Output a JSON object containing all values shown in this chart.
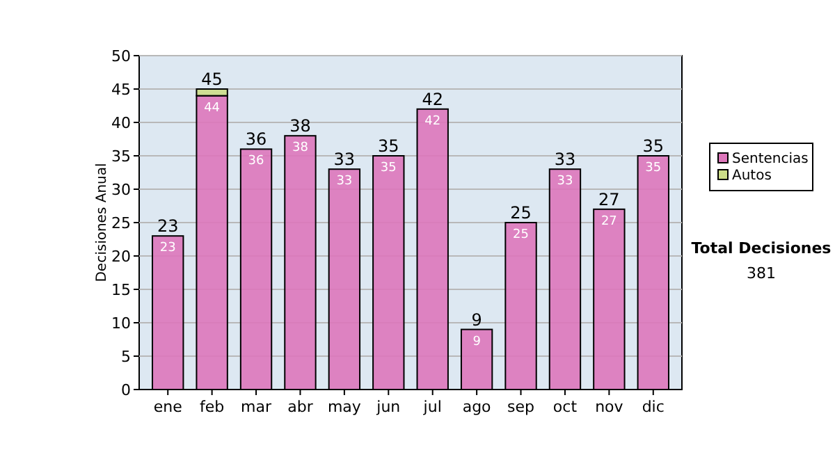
{
  "chart_data": {
    "type": "bar",
    "stacked": true,
    "ylabel": "Decisiones Anual",
    "categories": [
      "ene",
      "feb",
      "mar",
      "abr",
      "may",
      "jun",
      "jul",
      "ago",
      "sep",
      "oct",
      "nov",
      "dic"
    ],
    "series": [
      {
        "name": "Sentencias",
        "color": "#dd77bb",
        "values": [
          23,
          44,
          36,
          38,
          33,
          35,
          42,
          9,
          25,
          33,
          27,
          35
        ],
        "value_labels": [
          "23",
          "44",
          "36",
          "38",
          "33",
          "35",
          "42",
          "9",
          "25",
          "33",
          "27",
          "35"
        ]
      },
      {
        "name": "Autos",
        "color": "#ccdd88",
        "values": [
          0,
          1,
          0,
          0,
          0,
          0,
          0,
          0,
          0,
          0,
          0,
          0
        ]
      }
    ],
    "totals": [
      "23",
      "45",
      "36",
      "38",
      "33",
      "35",
      "42",
      "9",
      "25",
      "33",
      "27",
      "35"
    ],
    "ylim": [
      0,
      50
    ],
    "yticks": [
      0,
      5,
      10,
      15,
      20,
      25,
      30,
      35,
      40,
      45,
      50
    ],
    "grid": "y",
    "legend": "right",
    "annotations": [
      "Total Decisiones",
      "381"
    ]
  }
}
